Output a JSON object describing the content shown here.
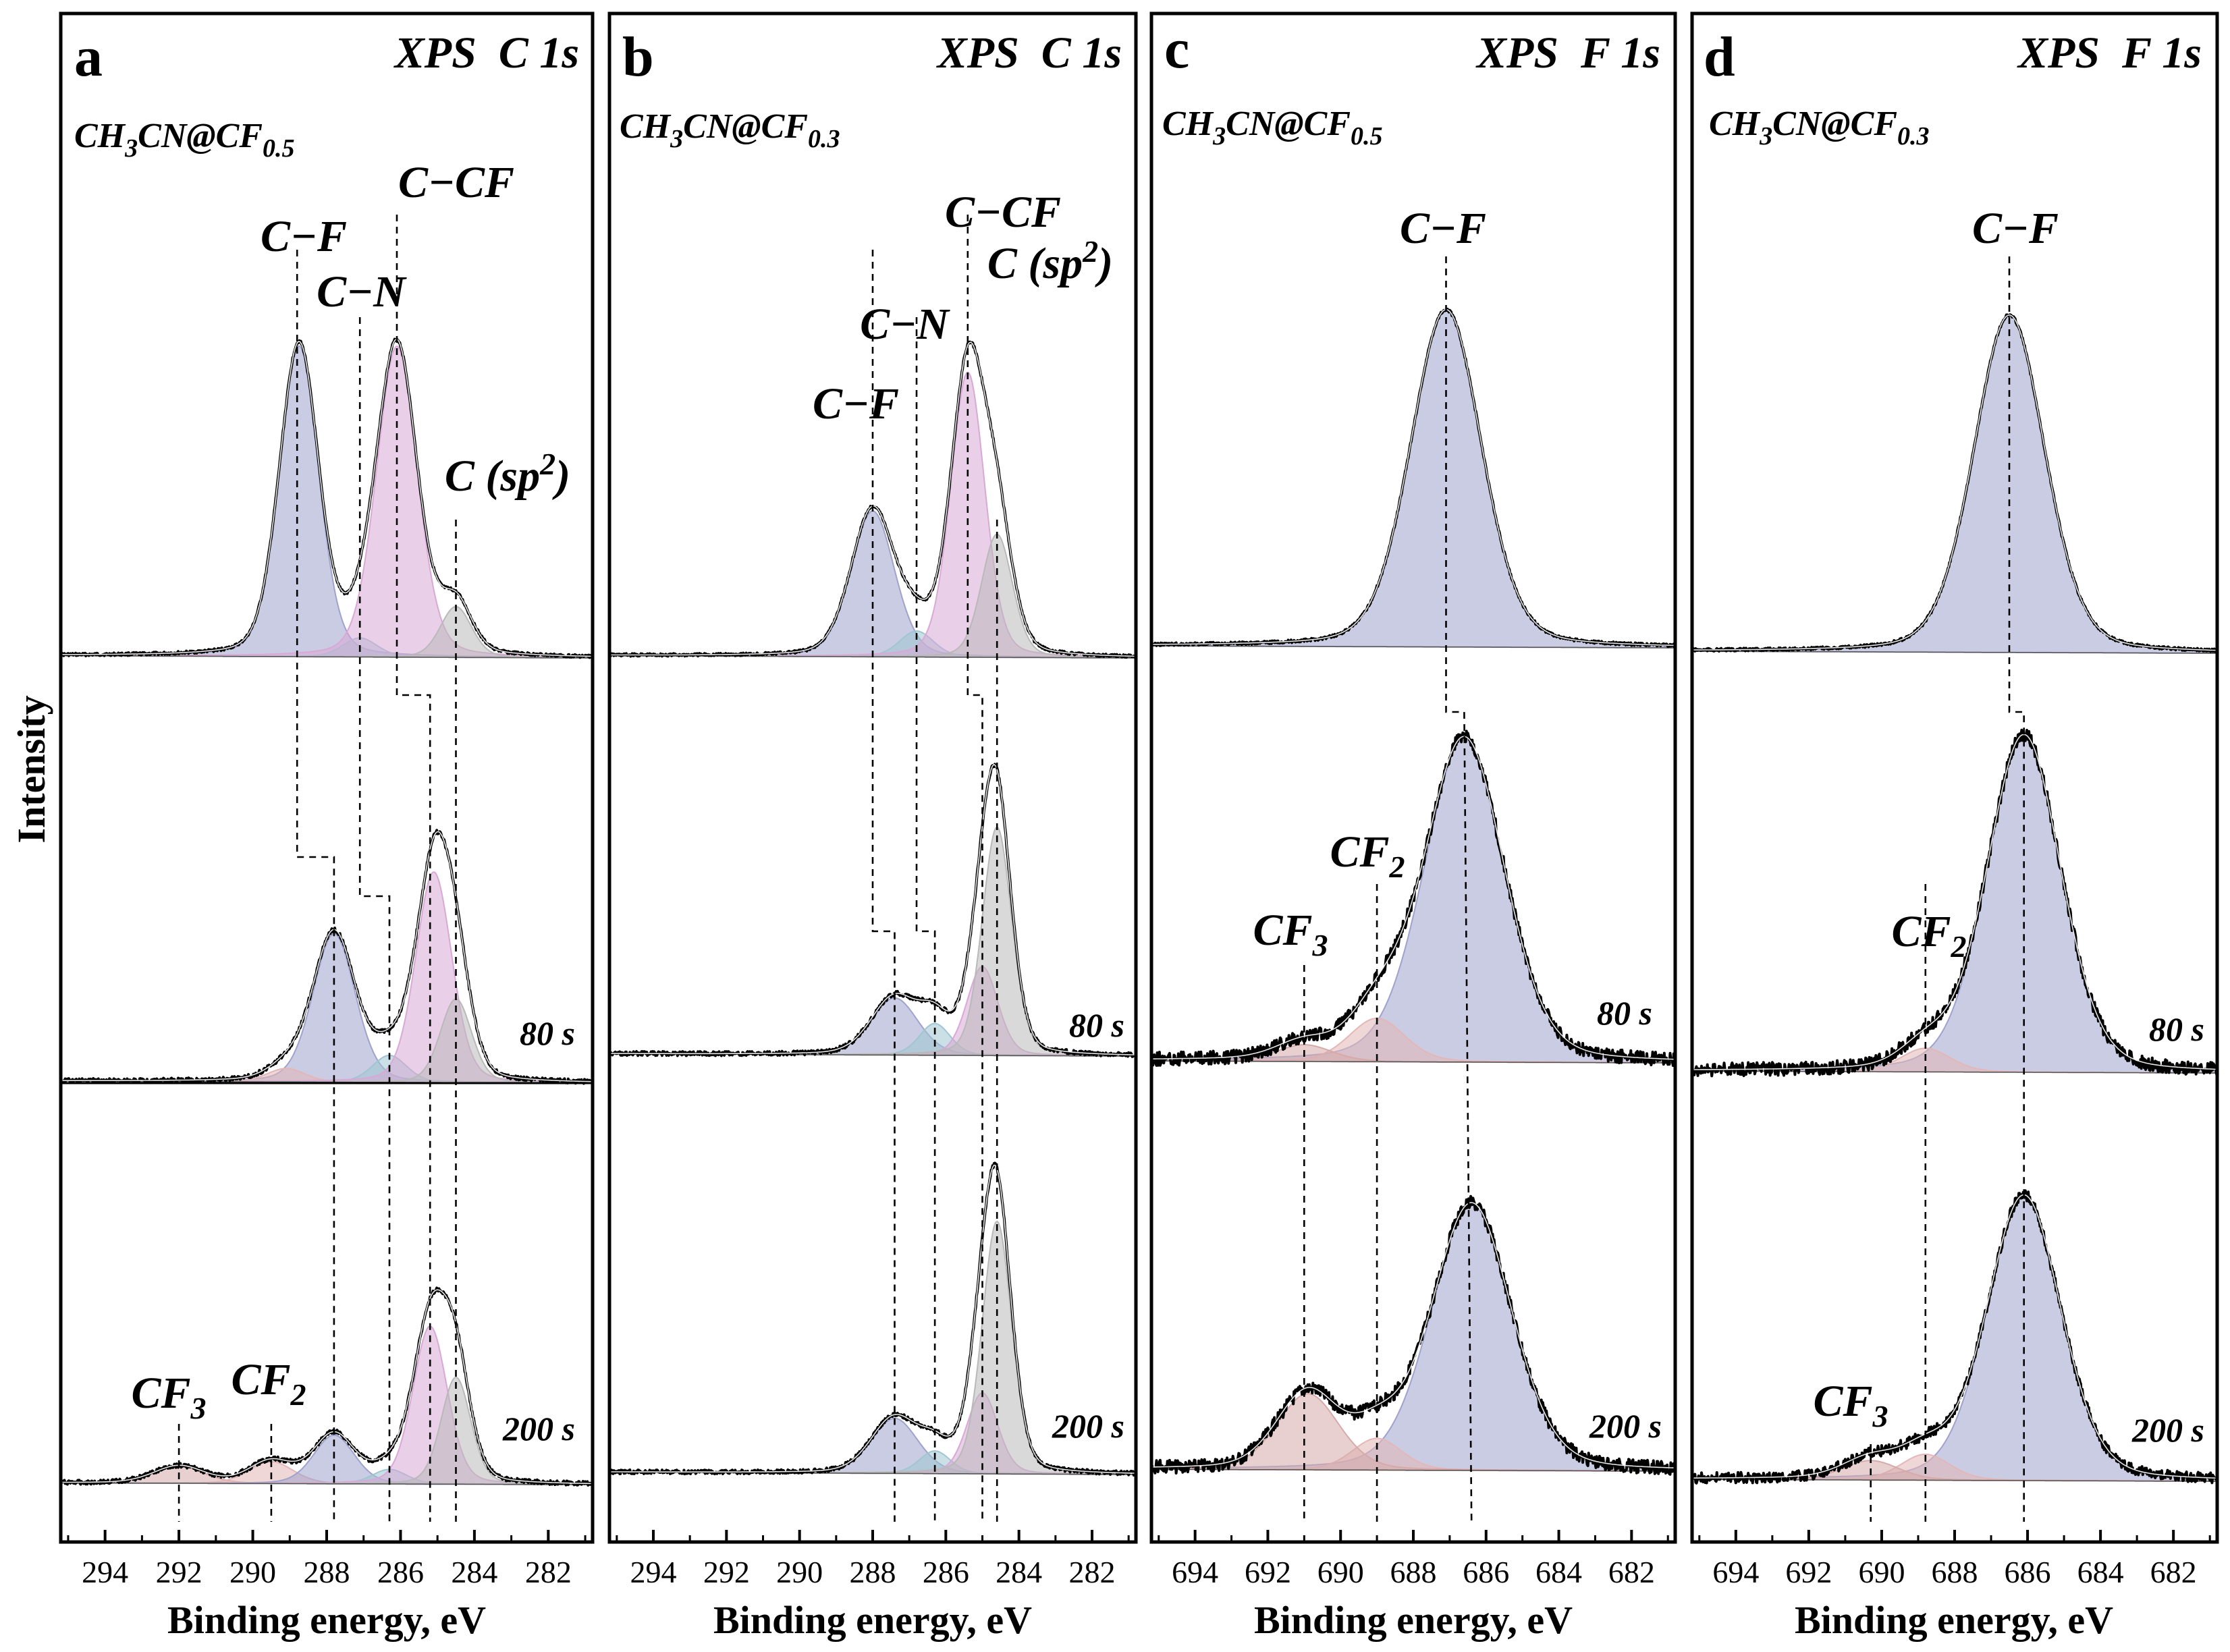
{
  "figure": {
    "y_axis_label": "Intensity"
  },
  "colors": {
    "C-F": "#9fa2cc",
    "C-N": "#9fc6d1",
    "C-CF": "#d9a8d6",
    "C(sp2)": "#b9b9b9",
    "CF2": "#e3b7b7",
    "CF3": "#d7a9a9",
    "F-C-F": "#bdbdbd",
    "envelope": "#000000"
  },
  "chart_data": [
    {
      "panel": "a",
      "type": "line",
      "title": "XPS  C 1s",
      "material": {
        "base": "CH",
        "s1": "3",
        "mid": "CN@CF",
        "s2": "0.5"
      },
      "xlabel": "Binding energy, eV",
      "ylabel": "Intensity",
      "xlim": [
        295.2,
        280.8
      ],
      "xticks": [
        294,
        292,
        290,
        288,
        286,
        284,
        282
      ],
      "tick_labels": [
        "294",
        "292",
        "290",
        "288",
        "286",
        "284",
        "282"
      ],
      "series": [
        {
          "time": "",
          "components": [
            {
              "name": "C-F",
              "center": 288.75,
              "fwhm": 1.25,
              "height": 0.98
            },
            {
              "name": "C-N",
              "center": 287.1,
              "fwhm": 1.1,
              "height": 0.06
            },
            {
              "name": "C-CF",
              "center": 286.1,
              "fwhm": 1.3,
              "height": 0.98
            },
            {
              "name": "C(sp2)",
              "center": 284.5,
              "fwhm": 1.0,
              "height": 0.16
            }
          ]
        },
        {
          "time": "80 s",
          "components": [
            {
              "name": "C-F",
              "center": 287.8,
              "fwhm": 1.35,
              "height": 0.55
            },
            {
              "name": "CF2",
              "center": 289.1,
              "fwhm": 1.2,
              "height": 0.05
            },
            {
              "name": "C-N",
              "center": 286.3,
              "fwhm": 1.1,
              "height": 0.1
            },
            {
              "name": "C-CF",
              "center": 285.1,
              "fwhm": 1.15,
              "height": 0.78
            },
            {
              "name": "C(sp2)",
              "center": 284.5,
              "fwhm": 1.0,
              "height": 0.31
            }
          ]
        },
        {
          "time": "200 s",
          "components": [
            {
              "name": "CF3",
              "center": 292.0,
              "fwhm": 1.6,
              "height": 0.07
            },
            {
              "name": "CF2",
              "center": 289.5,
              "fwhm": 1.4,
              "height": 0.09
            },
            {
              "name": "C-F",
              "center": 287.8,
              "fwhm": 1.3,
              "height": 0.2
            },
            {
              "name": "C-N",
              "center": 286.3,
              "fwhm": 1.1,
              "height": 0.06
            },
            {
              "name": "C-CF",
              "center": 285.2,
              "fwhm": 1.1,
              "height": 0.65
            },
            {
              "name": "C(sp2)",
              "center": 284.5,
              "fwhm": 0.95,
              "height": 0.44
            }
          ]
        }
      ],
      "annotations": [
        {
          "text": "C−F",
          "sub": ""
        },
        {
          "text": "C−N",
          "sub": ""
        },
        {
          "text": "C−CF",
          "sub": ""
        },
        {
          "text": "C (sp",
          "sup": "2",
          "end": ")"
        },
        {
          "text": "CF",
          "sub": "3"
        },
        {
          "text": "CF",
          "sub": "2"
        }
      ],
      "peak_guides": {
        "C-F": [
          288.8,
          287.8,
          287.8
        ],
        "C-N": [
          287.1,
          286.3,
          286.3
        ],
        "C-CF": [
          286.1,
          285.2,
          285.2
        ],
        "C(sp2)": [
          284.5,
          284.5,
          284.5
        ],
        "CF3": 292.0,
        "CF2": 289.5
      }
    },
    {
      "panel": "b",
      "type": "line",
      "title": "XPS  C 1s",
      "material": {
        "base": "CH",
        "s1": "3",
        "mid": "CN@CF",
        "s2": "0.3"
      },
      "xlabel": "Binding energy, eV",
      "ylabel": "Intensity",
      "xlim": [
        295.2,
        280.8
      ],
      "xticks": [
        294,
        292,
        290,
        288,
        286,
        284,
        282
      ],
      "tick_labels": [
        "294",
        "292",
        "290",
        "288",
        "286",
        "284",
        "282"
      ],
      "series": [
        {
          "time": "",
          "components": [
            {
              "name": "C-F",
              "center": 288.0,
              "fwhm": 1.4,
              "height": 0.45
            },
            {
              "name": "C-N",
              "center": 286.8,
              "fwhm": 1.1,
              "height": 0.08
            },
            {
              "name": "C-CF",
              "center": 285.4,
              "fwhm": 1.1,
              "height": 0.88
            },
            {
              "name": "C(sp2)",
              "center": 284.6,
              "fwhm": 1.0,
              "height": 0.38
            }
          ]
        },
        {
          "time": "80 s",
          "components": [
            {
              "name": "C-F",
              "center": 287.4,
              "fwhm": 1.5,
              "height": 0.18
            },
            {
              "name": "C-N",
              "center": 286.3,
              "fwhm": 1.0,
              "height": 0.1
            },
            {
              "name": "C-CF",
              "center": 285.0,
              "fwhm": 1.0,
              "height": 0.28
            },
            {
              "name": "C(sp2)",
              "center": 284.6,
              "fwhm": 0.95,
              "height": 0.72
            }
          ]
        },
        {
          "time": "200 s",
          "components": [
            {
              "name": "C-F",
              "center": 287.4,
              "fwhm": 1.5,
              "height": 0.17
            },
            {
              "name": "C-N",
              "center": 286.3,
              "fwhm": 1.0,
              "height": 0.07
            },
            {
              "name": "C-CF",
              "center": 285.0,
              "fwhm": 1.0,
              "height": 0.25
            },
            {
              "name": "C(sp2)",
              "center": 284.6,
              "fwhm": 0.95,
              "height": 0.78
            }
          ]
        }
      ],
      "annotations": [
        {
          "text": "C−CF",
          "sub": ""
        },
        {
          "text": "C (sp",
          "sup": "2",
          "end": ")"
        },
        {
          "text": "C−N",
          "sub": ""
        },
        {
          "text": "C−F",
          "sub": ""
        }
      ],
      "peak_guides": {
        "C-F": [
          288.0,
          287.4,
          287.4
        ],
        "C-N": [
          286.8,
          286.3,
          286.3
        ],
        "C-CF": [
          285.4,
          285.0,
          285.0
        ],
        "C(sp2)": [
          284.6,
          284.6,
          284.6
        ]
      }
    },
    {
      "panel": "c",
      "type": "line",
      "title": "XPS  F 1s",
      "material": {
        "base": "CH",
        "s1": "3",
        "mid": "CN@CF",
        "s2": "0.5"
      },
      "xlabel": "Binding energy, eV",
      "ylabel": "Intensity",
      "xlim": [
        695.2,
        680.8
      ],
      "xticks": [
        694,
        692,
        690,
        688,
        686,
        684,
        682
      ],
      "tick_labels": [
        "694",
        "692",
        "690",
        "688",
        "686",
        "684",
        "682"
      ],
      "series": [
        {
          "time": "",
          "components": [
            {
              "name": "C-F",
              "center": 687.1,
              "fwhm": 2.3,
              "height": 1.0
            }
          ]
        },
        {
          "time": "80 s",
          "components": [
            {
              "name": "C-F",
              "center": 686.6,
              "fwhm": 2.6,
              "height": 0.97
            },
            {
              "name": "CF2",
              "center": 689.0,
              "fwhm": 1.8,
              "height": 0.13
            },
            {
              "name": "CF3",
              "center": 691.0,
              "fwhm": 1.8,
              "height": 0.05
            }
          ]
        },
        {
          "time": "200 s",
          "components": [
            {
              "name": "C-F",
              "center": 686.4,
              "fwhm": 2.6,
              "height": 0.84
            },
            {
              "name": "CF2",
              "center": 689.0,
              "fwhm": 1.6,
              "height": 0.1
            },
            {
              "name": "CF3",
              "center": 690.9,
              "fwhm": 2.0,
              "height": 0.24
            }
          ]
        }
      ],
      "annotations": [
        {
          "text": "C−F",
          "sub": ""
        },
        {
          "text": "CF",
          "sub": "2"
        },
        {
          "text": "CF",
          "sub": "3"
        }
      ],
      "peak_guides": {
        "C-F": [
          687.1,
          686.6,
          686.4
        ],
        "CF2": 689.0,
        "CF3": 691.0
      }
    },
    {
      "panel": "d",
      "type": "line",
      "title": "XPS  F 1s",
      "material": {
        "base": "CH",
        "s1": "3",
        "mid": "CN@CF",
        "s2": "0.3"
      },
      "xlabel": "Binding energy, eV",
      "ylabel": "Intensity",
      "xlim": [
        695.2,
        680.8
      ],
      "xticks": [
        694,
        692,
        690,
        688,
        686,
        684,
        682
      ],
      "tick_labels": [
        "694",
        "692",
        "690",
        "688",
        "686",
        "684",
        "682"
      ],
      "series": [
        {
          "time": "",
          "components": [
            {
              "name": "C-F",
              "center": 686.5,
              "fwhm": 2.3,
              "height": 1.0
            }
          ]
        },
        {
          "time": "80 s",
          "components": [
            {
              "name": "C-F",
              "center": 686.1,
              "fwhm": 2.4,
              "height": 1.0
            },
            {
              "name": "CF2",
              "center": 688.8,
              "fwhm": 1.6,
              "height": 0.07
            }
          ]
        },
        {
          "time": "200 s",
          "components": [
            {
              "name": "C-F",
              "center": 686.1,
              "fwhm": 2.4,
              "height": 0.88
            },
            {
              "name": "CF2",
              "center": 688.8,
              "fwhm": 1.6,
              "height": 0.08
            },
            {
              "name": "CF3",
              "center": 690.3,
              "fwhm": 1.8,
              "height": 0.06
            }
          ]
        }
      ],
      "annotations": [
        {
          "text": "C−F",
          "sub": ""
        },
        {
          "text": "CF",
          "sub": "2"
        },
        {
          "text": "CF",
          "sub": "3"
        }
      ],
      "peak_guides": {
        "C-F": [
          686.5,
          686.1,
          686.1
        ],
        "CF2": 688.8,
        "CF3": 690.3
      }
    }
  ]
}
